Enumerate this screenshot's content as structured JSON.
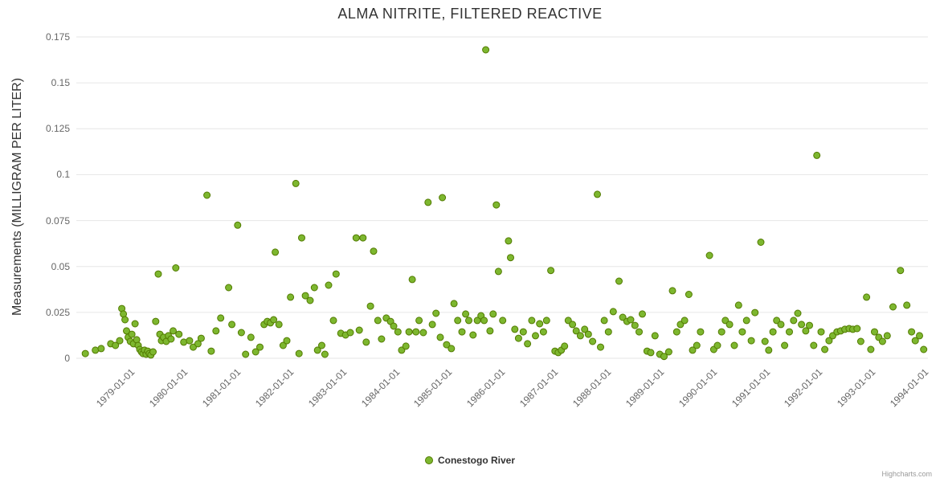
{
  "title": "ALMA NITRITE, FILTERED REACTIVE",
  "y_axis": {
    "title": "Measurements (MILLIGRAM PER LITER)",
    "ticks": [
      0,
      0.025,
      0.05,
      0.075,
      0.1,
      0.125,
      0.15,
      0.175
    ],
    "tick_labels": [
      "0",
      "0.025",
      "0.05",
      "0.075",
      "0.1",
      "0.125",
      "0.15",
      "0.175"
    ]
  },
  "x_axis": {
    "tick_values": [
      1979,
      1980,
      1981,
      1982,
      1983,
      1984,
      1985,
      1986,
      1987,
      1988,
      1989,
      1990,
      1991,
      1992,
      1993,
      1994
    ],
    "tick_labels": [
      "1979-01-01",
      "1980-01-01",
      "1981-01-01",
      "1982-01-01",
      "1983-01-01",
      "1984-01-01",
      "1985-01-01",
      "1986-01-01",
      "1987-01-01",
      "1988-01-01",
      "1989-01-01",
      "1990-01-01",
      "1991-01-01",
      "1992-01-01",
      "1993-01-01",
      "1994-01-01"
    ]
  },
  "legend": {
    "label": "Conestogo River"
  },
  "credits": "Highcharts.com",
  "colors": {
    "marker_fill": "#7db72f",
    "marker_stroke": "#527a00",
    "grid": "#e6e6e6",
    "title": "#333333",
    "tick_label": "#666666"
  },
  "chart_data": {
    "type": "scatter",
    "title": "ALMA NITRITE, FILTERED REACTIVE",
    "xlabel": "",
    "ylabel": "Measurements (MILLIGRAM PER LITER)",
    "xlim": [
      1978.0,
      1994.1
    ],
    "ylim": [
      0,
      0.175
    ],
    "x_unit": "decimal_year",
    "grid": "horizontal",
    "legend_position": "bottom",
    "series": [
      {
        "name": "Conestogo River",
        "points": [
          [
            1978.17,
            0.0026
          ],
          [
            1978.36,
            0.0044
          ],
          [
            1978.47,
            0.0053
          ],
          [
            1978.65,
            0.0079
          ],
          [
            1978.74,
            0.007
          ],
          [
            1978.82,
            0.0096
          ],
          [
            1978.86,
            0.0271
          ],
          [
            1978.89,
            0.0241
          ],
          [
            1978.92,
            0.021
          ],
          [
            1978.95,
            0.0149
          ],
          [
            1978.98,
            0.0114
          ],
          [
            1979.02,
            0.0092
          ],
          [
            1979.05,
            0.0131
          ],
          [
            1979.08,
            0.0079
          ],
          [
            1979.11,
            0.0188
          ],
          [
            1979.14,
            0.0101
          ],
          [
            1979.17,
            0.007
          ],
          [
            1979.2,
            0.0048
          ],
          [
            1979.23,
            0.0035
          ],
          [
            1979.26,
            0.0026
          ],
          [
            1979.29,
            0.0044
          ],
          [
            1979.32,
            0.0022
          ],
          [
            1979.35,
            0.0039
          ],
          [
            1979.38,
            0.0026
          ],
          [
            1979.41,
            0.0018
          ],
          [
            1979.45,
            0.0035
          ],
          [
            1979.5,
            0.0201
          ],
          [
            1979.55,
            0.0459
          ],
          [
            1979.58,
            0.0131
          ],
          [
            1979.61,
            0.0096
          ],
          [
            1979.65,
            0.0114
          ],
          [
            1979.7,
            0.0092
          ],
          [
            1979.74,
            0.0123
          ],
          [
            1979.79,
            0.0105
          ],
          [
            1979.83,
            0.0149
          ],
          [
            1979.88,
            0.0492
          ],
          [
            1979.94,
            0.0131
          ],
          [
            1980.03,
            0.0088
          ],
          [
            1980.14,
            0.0096
          ],
          [
            1980.21,
            0.0061
          ],
          [
            1980.3,
            0.0079
          ],
          [
            1980.36,
            0.0109
          ],
          [
            1980.47,
            0.0888
          ],
          [
            1980.55,
            0.0039
          ],
          [
            1980.64,
            0.0149
          ],
          [
            1980.73,
            0.0219
          ],
          [
            1980.88,
            0.0385
          ],
          [
            1980.94,
            0.0184
          ],
          [
            1981.05,
            0.0725
          ],
          [
            1981.12,
            0.014
          ],
          [
            1981.2,
            0.0022
          ],
          [
            1981.3,
            0.0114
          ],
          [
            1981.39,
            0.0035
          ],
          [
            1981.47,
            0.0061
          ],
          [
            1981.55,
            0.0184
          ],
          [
            1981.61,
            0.0201
          ],
          [
            1981.67,
            0.0193
          ],
          [
            1981.73,
            0.021
          ],
          [
            1981.76,
            0.0578
          ],
          [
            1981.83,
            0.0184
          ],
          [
            1981.91,
            0.007
          ],
          [
            1981.98,
            0.0096
          ],
          [
            1982.05,
            0.0333
          ],
          [
            1982.15,
            0.0952
          ],
          [
            1982.21,
            0.0026
          ],
          [
            1982.26,
            0.0656
          ],
          [
            1982.33,
            0.0341
          ],
          [
            1982.42,
            0.0315
          ],
          [
            1982.5,
            0.0385
          ],
          [
            1982.56,
            0.0044
          ],
          [
            1982.64,
            0.007
          ],
          [
            1982.7,
            0.0022
          ],
          [
            1982.77,
            0.0398
          ],
          [
            1982.86,
            0.0206
          ],
          [
            1982.91,
            0.0459
          ],
          [
            1983.0,
            0.0136
          ],
          [
            1983.09,
            0.0127
          ],
          [
            1983.18,
            0.014
          ],
          [
            1983.29,
            0.0656
          ],
          [
            1983.35,
            0.0153
          ],
          [
            1983.42,
            0.0656
          ],
          [
            1983.48,
            0.0088
          ],
          [
            1983.56,
            0.0284
          ],
          [
            1983.62,
            0.0583
          ],
          [
            1983.7,
            0.0206
          ],
          [
            1983.77,
            0.0105
          ],
          [
            1983.86,
            0.0219
          ],
          [
            1983.94,
            0.0201
          ],
          [
            1984.0,
            0.0175
          ],
          [
            1984.08,
            0.0144
          ],
          [
            1984.15,
            0.0044
          ],
          [
            1984.23,
            0.0066
          ],
          [
            1984.29,
            0.0144
          ],
          [
            1984.35,
            0.0429
          ],
          [
            1984.42,
            0.0144
          ],
          [
            1984.48,
            0.0206
          ],
          [
            1984.56,
            0.014
          ],
          [
            1984.65,
            0.0849
          ],
          [
            1984.73,
            0.0184
          ],
          [
            1984.8,
            0.0245
          ],
          [
            1984.88,
            0.0114
          ],
          [
            1984.92,
            0.0875
          ],
          [
            1985.0,
            0.0074
          ],
          [
            1985.09,
            0.0053
          ],
          [
            1985.14,
            0.0298
          ],
          [
            1985.21,
            0.0206
          ],
          [
            1985.29,
            0.0144
          ],
          [
            1985.36,
            0.0241
          ],
          [
            1985.42,
            0.0206
          ],
          [
            1985.5,
            0.0127
          ],
          [
            1985.58,
            0.0206
          ],
          [
            1985.65,
            0.0232
          ],
          [
            1985.71,
            0.0206
          ],
          [
            1985.74,
            0.168
          ],
          [
            1985.82,
            0.0149
          ],
          [
            1985.88,
            0.0241
          ],
          [
            1985.94,
            0.0835
          ],
          [
            1985.98,
            0.0473
          ],
          [
            1986.06,
            0.0206
          ],
          [
            1986.17,
            0.0639
          ],
          [
            1986.21,
            0.0548
          ],
          [
            1986.29,
            0.0158
          ],
          [
            1986.36,
            0.0109
          ],
          [
            1986.45,
            0.0144
          ],
          [
            1986.53,
            0.0079
          ],
          [
            1986.61,
            0.0206
          ],
          [
            1986.68,
            0.0123
          ],
          [
            1986.76,
            0.0188
          ],
          [
            1986.83,
            0.0144
          ],
          [
            1986.89,
            0.0206
          ],
          [
            1986.97,
            0.0478
          ],
          [
            1987.05,
            0.0039
          ],
          [
            1987.11,
            0.0031
          ],
          [
            1987.17,
            0.0044
          ],
          [
            1987.23,
            0.0066
          ],
          [
            1987.3,
            0.0206
          ],
          [
            1987.38,
            0.0184
          ],
          [
            1987.45,
            0.0149
          ],
          [
            1987.53,
            0.0123
          ],
          [
            1987.61,
            0.0158
          ],
          [
            1987.68,
            0.0131
          ],
          [
            1987.76,
            0.0092
          ],
          [
            1987.85,
            0.0893
          ],
          [
            1987.91,
            0.0061
          ],
          [
            1987.98,
            0.0206
          ],
          [
            1988.06,
            0.0144
          ],
          [
            1988.15,
            0.0254
          ],
          [
            1988.26,
            0.042
          ],
          [
            1988.33,
            0.0223
          ],
          [
            1988.41,
            0.0201
          ],
          [
            1988.48,
            0.021
          ],
          [
            1988.56,
            0.0179
          ],
          [
            1988.64,
            0.0144
          ],
          [
            1988.7,
            0.0241
          ],
          [
            1988.79,
            0.0039
          ],
          [
            1988.86,
            0.0031
          ],
          [
            1988.94,
            0.0123
          ],
          [
            1989.03,
            0.0022
          ],
          [
            1989.11,
            0.001
          ],
          [
            1989.2,
            0.0035
          ],
          [
            1989.27,
            0.0368
          ],
          [
            1989.35,
            0.0144
          ],
          [
            1989.42,
            0.0184
          ],
          [
            1989.5,
            0.0206
          ],
          [
            1989.58,
            0.0348
          ],
          [
            1989.65,
            0.0044
          ],
          [
            1989.73,
            0.007
          ],
          [
            1989.8,
            0.0144
          ],
          [
            1989.97,
            0.056
          ],
          [
            1990.05,
            0.0048
          ],
          [
            1990.12,
            0.007
          ],
          [
            1990.2,
            0.0144
          ],
          [
            1990.27,
            0.0206
          ],
          [
            1990.35,
            0.0184
          ],
          [
            1990.44,
            0.007
          ],
          [
            1990.52,
            0.0289
          ],
          [
            1990.59,
            0.0144
          ],
          [
            1990.67,
            0.0206
          ],
          [
            1990.76,
            0.0096
          ],
          [
            1990.83,
            0.0249
          ],
          [
            1990.94,
            0.0632
          ],
          [
            1991.02,
            0.0092
          ],
          [
            1991.09,
            0.0044
          ],
          [
            1991.17,
            0.0144
          ],
          [
            1991.24,
            0.0206
          ],
          [
            1991.32,
            0.0184
          ],
          [
            1991.39,
            0.007
          ],
          [
            1991.48,
            0.0144
          ],
          [
            1991.56,
            0.0206
          ],
          [
            1991.64,
            0.0245
          ],
          [
            1991.71,
            0.0184
          ],
          [
            1991.79,
            0.0149
          ],
          [
            1991.86,
            0.0179
          ],
          [
            1991.94,
            0.007
          ],
          [
            1992.0,
            0.1105
          ],
          [
            1992.08,
            0.0144
          ],
          [
            1992.15,
            0.0048
          ],
          [
            1992.23,
            0.0096
          ],
          [
            1992.3,
            0.0123
          ],
          [
            1992.38,
            0.0144
          ],
          [
            1992.45,
            0.0149
          ],
          [
            1992.53,
            0.0158
          ],
          [
            1992.61,
            0.0162
          ],
          [
            1992.68,
            0.0158
          ],
          [
            1992.76,
            0.0162
          ],
          [
            1992.83,
            0.0092
          ],
          [
            1992.94,
            0.0333
          ],
          [
            1993.02,
            0.0048
          ],
          [
            1993.09,
            0.0144
          ],
          [
            1993.17,
            0.0114
          ],
          [
            1993.24,
            0.0092
          ],
          [
            1993.33,
            0.0123
          ],
          [
            1993.44,
            0.028
          ],
          [
            1993.58,
            0.0478
          ],
          [
            1993.7,
            0.0289
          ],
          [
            1993.79,
            0.0144
          ],
          [
            1993.86,
            0.0096
          ],
          [
            1993.94,
            0.0123
          ],
          [
            1994.02,
            0.0048
          ]
        ]
      }
    ]
  }
}
